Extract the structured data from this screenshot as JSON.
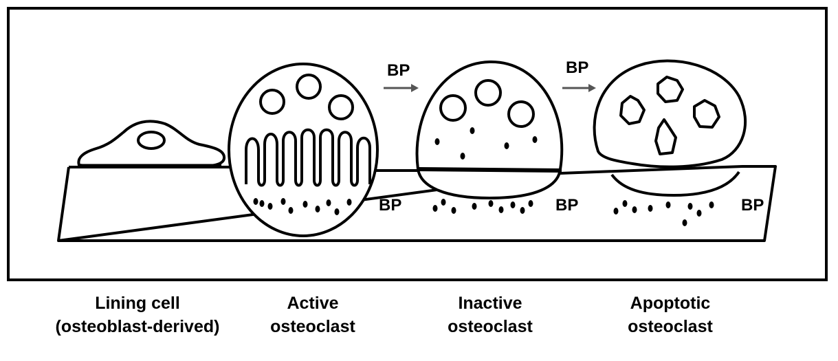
{
  "bp_labels": {
    "arrow_1": "BP",
    "arrow_2": "BP",
    "bone_1": "BP",
    "bone_2": "BP",
    "bone_3": "BP"
  },
  "captions": {
    "lining_cell": {
      "line1": "Lining cell",
      "line2": "(osteoblast-derived)"
    },
    "active_osteoclast": {
      "line1": "Active",
      "line2": "osteoclast"
    },
    "inactive_osteoclast": {
      "line1": "Inactive",
      "line2": "osteoclast"
    },
    "apoptotic_osteoclast": {
      "line1": "Apoptotic",
      "line2": "osteoclast"
    }
  },
  "colors": {
    "stroke": "#000000",
    "arrow": "#555555",
    "background": "#ffffff"
  }
}
